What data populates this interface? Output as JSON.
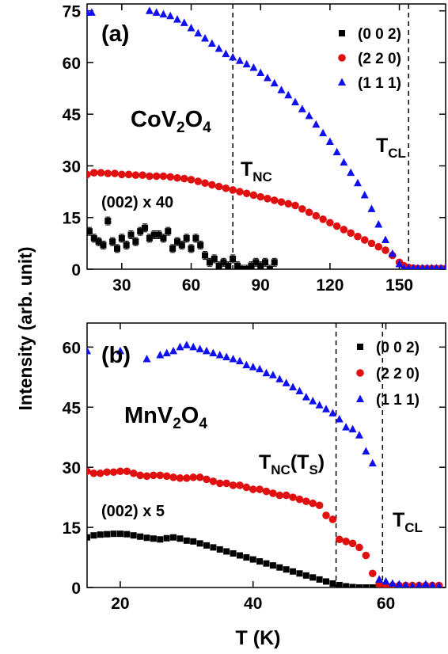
{
  "figure": {
    "ylabel": "Intensity (arb. unit)",
    "xlabel": "T (K)"
  },
  "colors": {
    "s002": "#000000",
    "s220": "#e01010",
    "s111": "#1010ee"
  },
  "chart_data": [
    {
      "type": "scatter",
      "panel_label": "(a)",
      "compound": {
        "base": "CoV",
        "sub1": "2",
        "mid": "O",
        "sub2": "4"
      },
      "annotation_scale": "(002) x 40",
      "xlim": [
        15,
        170
      ],
      "ylim": [
        0,
        77
      ],
      "xticks": [
        "30",
        "60",
        "90",
        "120",
        "150"
      ],
      "yticks": [
        "0",
        "15",
        "30",
        "45",
        "60",
        "75"
      ],
      "xtick_values": [
        30,
        60,
        90,
        120,
        150
      ],
      "ytick_values": [
        0,
        15,
        30,
        45,
        60,
        75
      ],
      "transitions": [
        {
          "name": "T_NC",
          "x": 78,
          "label_base": "T",
          "label_sub": "NC",
          "label_tail": ""
        },
        {
          "name": "T_CL",
          "x": 154,
          "label_base": "T",
          "label_sub": "CL",
          "label_tail": ""
        }
      ],
      "series": [
        {
          "name": "(0 0 2)",
          "marker": "square",
          "color_key": "s002",
          "errorbars": true,
          "x": [
            16,
            18,
            20,
            22,
            24,
            26,
            28,
            30,
            32,
            34,
            36,
            38,
            40,
            42,
            44,
            46,
            48,
            50,
            52,
            54,
            56,
            58,
            60,
            62,
            64,
            66,
            68,
            70,
            72,
            74,
            76,
            78,
            80,
            82,
            84,
            86,
            88,
            90,
            92,
            94,
            96
          ],
          "y": [
            11,
            9,
            8,
            7,
            14,
            8,
            6,
            9,
            7,
            10,
            8,
            11,
            12,
            9,
            10,
            10,
            9,
            11,
            6,
            8,
            7,
            9,
            6,
            9,
            7,
            4,
            2,
            3,
            1,
            2,
            1,
            3,
            1,
            0,
            0,
            1,
            2,
            1,
            2,
            0,
            2
          ]
        },
        {
          "name": "(2 2 0)",
          "marker": "circle",
          "color_key": "s220",
          "errorbars": false,
          "x": [
            15,
            18,
            21,
            24,
            27,
            30,
            33,
            36,
            39,
            42,
            45,
            48,
            51,
            54,
            57,
            60,
            63,
            66,
            69,
            72,
            75,
            78,
            81,
            84,
            87,
            90,
            93,
            96,
            99,
            102,
            105,
            108,
            111,
            114,
            117,
            120,
            123,
            126,
            129,
            132,
            135,
            138,
            141,
            144,
            147,
            150,
            152,
            154,
            156,
            158,
            160,
            162,
            164,
            166,
            168,
            170
          ],
          "y": [
            27.5,
            28,
            28,
            27.8,
            27.8,
            27.5,
            27.5,
            27.3,
            27.3,
            27,
            27,
            27,
            26.8,
            26.5,
            26.3,
            26,
            25.5,
            25,
            24.5,
            24,
            23.5,
            23,
            22.5,
            22,
            21.5,
            21,
            20.5,
            20,
            19.5,
            19,
            18.5,
            17.5,
            16.5,
            15.5,
            14.5,
            13.5,
            12.5,
            11.5,
            10.5,
            9.5,
            8.5,
            7.5,
            6.5,
            5.5,
            4,
            2,
            1,
            0.5,
            0.3,
            0.2,
            0.2,
            0.2,
            0.2,
            0.2,
            0.2,
            0.2
          ]
        },
        {
          "name": "(1 1 1)",
          "marker": "triangle",
          "color_key": "s111",
          "errorbars": false,
          "x": [
            15,
            17,
            42,
            45,
            48,
            51,
            54,
            57,
            60,
            63,
            66,
            69,
            72,
            75,
            78,
            81,
            84,
            87,
            90,
            93,
            96,
            99,
            102,
            105,
            108,
            111,
            114,
            117,
            120,
            123,
            126,
            129,
            132,
            135,
            138,
            141,
            144,
            147,
            150,
            152,
            154,
            156,
            158,
            160,
            162,
            164,
            166,
            168,
            170
          ],
          "y": [
            74.5,
            74.5,
            75,
            74.5,
            74,
            73.5,
            72.5,
            71.5,
            70,
            68.5,
            67,
            65.5,
            64,
            62.5,
            61.5,
            60.5,
            59.5,
            58.5,
            57,
            55.5,
            54,
            52,
            50.5,
            48.5,
            46.5,
            44.5,
            42,
            39.5,
            37,
            34,
            31,
            28,
            25,
            21.5,
            17.5,
            13,
            8.5,
            4.5,
            1.5,
            0.3,
            0.3,
            0.3,
            0.3,
            0.3,
            0.3,
            0.3,
            0.3,
            0.3,
            0.3
          ]
        }
      ]
    },
    {
      "type": "scatter",
      "panel_label": "(b)",
      "compound": {
        "base": "MnV",
        "sub1": "2",
        "mid": "O",
        "sub2": "4"
      },
      "annotation_scale": "(002) x 5",
      "xlim": [
        15,
        69
      ],
      "ylim": [
        0,
        66
      ],
      "xticks": [
        "20",
        "40",
        "60"
      ],
      "yticks": [
        "0",
        "15",
        "30",
        "45",
        "60"
      ],
      "xtick_values": [
        20,
        40,
        60
      ],
      "ytick_values": [
        0,
        15,
        30,
        45,
        60
      ],
      "transitions": [
        {
          "name": "T_NC(T_S)",
          "x": 52.5,
          "label_base": "T",
          "label_sub": "NC",
          "label_tail": "(T",
          "label_sub2": "S",
          "label_end": ")"
        },
        {
          "name": "T_CL",
          "x": 59.5,
          "label_base": "T",
          "label_sub": "CL",
          "label_tail": ""
        }
      ],
      "series": [
        {
          "name": "(0 0 2)",
          "marker": "square",
          "color_key": "s002",
          "errorbars": false,
          "x": [
            15,
            16,
            17,
            18,
            19,
            20,
            21,
            22,
            23,
            24,
            25,
            26,
            27,
            28,
            29,
            30,
            31,
            32,
            33,
            34,
            35,
            36,
            37,
            38,
            39,
            40,
            41,
            42,
            43,
            44,
            45,
            46,
            47,
            48,
            49,
            50,
            51,
            52,
            53,
            54,
            55,
            56,
            57,
            58,
            59,
            60,
            61,
            62,
            63,
            64,
            65,
            66,
            67,
            68
          ],
          "y": [
            12.5,
            13,
            13.2,
            13.3,
            13.4,
            13.4,
            13.3,
            13,
            12.7,
            12.4,
            12.2,
            12,
            12.3,
            12.5,
            12.2,
            11.7,
            11.5,
            11,
            10.5,
            10,
            9.5,
            9,
            8.5,
            8,
            7.5,
            7,
            6.5,
            6,
            5.5,
            5,
            4.5,
            4,
            3.5,
            3,
            2.5,
            2,
            1.5,
            1,
            0.6,
            0.3,
            0.1,
            0,
            0,
            0,
            0,
            0,
            0,
            0,
            0,
            0,
            0,
            0,
            0,
            0
          ]
        },
        {
          "name": "(2 2 0)",
          "marker": "circle",
          "color_key": "s220",
          "errorbars": false,
          "x": [
            15,
            16,
            17,
            18,
            19,
            20,
            21,
            22,
            23,
            24,
            25,
            26,
            27,
            28,
            29,
            30,
            31,
            32,
            33,
            34,
            35,
            36,
            37,
            38,
            39,
            40,
            41,
            42,
            43,
            44,
            45,
            46,
            47,
            48,
            49,
            50,
            51,
            52,
            53,
            54,
            55,
            56,
            57,
            58,
            59,
            60,
            61,
            62,
            63,
            64,
            65,
            66,
            67,
            68
          ],
          "y": [
            29,
            28.5,
            28.5,
            28.8,
            28.8,
            29,
            29,
            28.5,
            28,
            27.8,
            28,
            28,
            27.8,
            27.5,
            27.3,
            27.3,
            27.5,
            27.5,
            27,
            26.5,
            26,
            26,
            25.5,
            25.5,
            25,
            24.5,
            24.5,
            24,
            23.5,
            23,
            23,
            22.5,
            22,
            21.5,
            21,
            20.5,
            18,
            17,
            12,
            11.5,
            11,
            10,
            8,
            3.5,
            0.8,
            0.5,
            0.5,
            0.5,
            0.5,
            0.5,
            0.5,
            0.5,
            0.5,
            0.5
          ]
        },
        {
          "name": "(1 1 1)",
          "marker": "triangle",
          "color_key": "s111",
          "errorbars": false,
          "x": [
            15,
            20,
            24,
            26,
            27,
            28,
            29,
            30,
            31,
            32,
            33,
            34,
            35,
            36,
            37,
            38,
            39,
            40,
            41,
            42,
            43,
            44,
            45,
            46,
            47,
            48,
            49,
            50,
            51,
            52,
            53,
            54,
            55,
            56,
            57,
            58,
            59,
            60,
            61,
            62,
            63,
            64,
            65,
            66,
            67,
            68
          ],
          "y": [
            59,
            59,
            57,
            58,
            58.5,
            59,
            60,
            60.5,
            60,
            59.5,
            59,
            58.5,
            58,
            57.5,
            57,
            56.5,
            55.5,
            55,
            54.5,
            53.5,
            53,
            52,
            51,
            50,
            49,
            47.5,
            46.5,
            45.5,
            44.5,
            43.5,
            42,
            40,
            39.5,
            38,
            34,
            31,
            2,
            1.5,
            1,
            0.8,
            0.5,
            0.3,
            0.5,
            0.8,
            0.5,
            0.3
          ]
        }
      ]
    }
  ]
}
